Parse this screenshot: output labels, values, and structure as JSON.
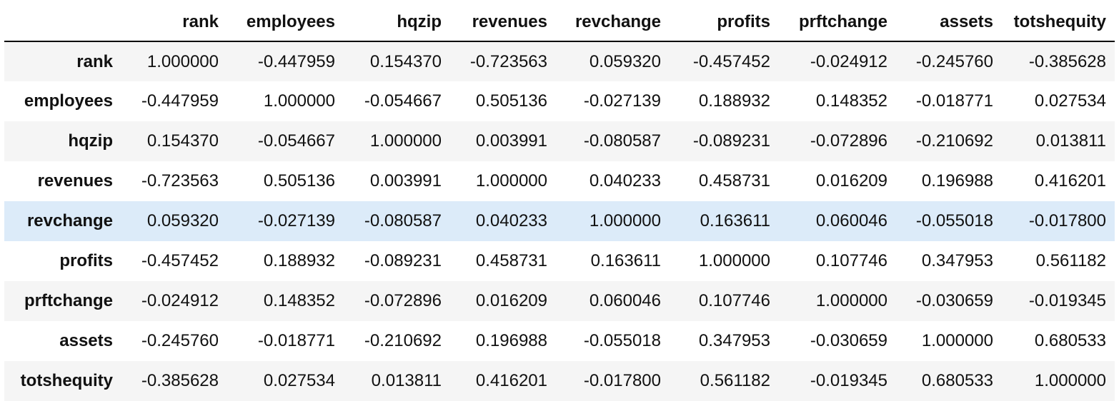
{
  "table": {
    "index_header": "",
    "columns": [
      "rank",
      "employees",
      "hqzip",
      "revenues",
      "revchange",
      "profits",
      "prftchange",
      "assets",
      "totshequity"
    ],
    "hovered_row_index": 4,
    "rows": [
      {
        "label": "rank",
        "values": [
          "1.000000",
          "-0.447959",
          "0.154370",
          "-0.723563",
          "0.059320",
          "-0.457452",
          "-0.024912",
          "-0.245760",
          "-0.385628"
        ]
      },
      {
        "label": "employees",
        "values": [
          "-0.447959",
          "1.000000",
          "-0.054667",
          "0.505136",
          "-0.027139",
          "0.188932",
          "0.148352",
          "-0.018771",
          "0.027534"
        ]
      },
      {
        "label": "hqzip",
        "values": [
          "0.154370",
          "-0.054667",
          "1.000000",
          "0.003991",
          "-0.080587",
          "-0.089231",
          "-0.072896",
          "-0.210692",
          "0.013811"
        ]
      },
      {
        "label": "revenues",
        "values": [
          "-0.723563",
          "0.505136",
          "0.003991",
          "1.000000",
          "0.040233",
          "0.458731",
          "0.016209",
          "0.196988",
          "0.416201"
        ]
      },
      {
        "label": "revchange",
        "values": [
          "0.059320",
          "-0.027139",
          "-0.080587",
          "0.040233",
          "1.000000",
          "0.163611",
          "0.060046",
          "-0.055018",
          "-0.017800"
        ]
      },
      {
        "label": "profits",
        "values": [
          "-0.457452",
          "0.188932",
          "-0.089231",
          "0.458731",
          "0.163611",
          "1.000000",
          "0.107746",
          "0.347953",
          "0.561182"
        ]
      },
      {
        "label": "prftchange",
        "values": [
          "-0.024912",
          "0.148352",
          "-0.072896",
          "0.016209",
          "0.060046",
          "0.107746",
          "1.000000",
          "-0.030659",
          "-0.019345"
        ]
      },
      {
        "label": "assets",
        "values": [
          "-0.245760",
          "-0.018771",
          "-0.210692",
          "0.196988",
          "-0.055018",
          "0.347953",
          "-0.030659",
          "1.000000",
          "0.680533"
        ]
      },
      {
        "label": "totshequity",
        "values": [
          "-0.385628",
          "0.027534",
          "0.013811",
          "0.416201",
          "-0.017800",
          "0.561182",
          "-0.019345",
          "0.680533",
          "1.000000"
        ]
      }
    ]
  },
  "colors": {
    "row_odd": "#f5f5f5",
    "row_even": "#ffffff",
    "row_hover": "#dcebf9",
    "header_rule": "#000000",
    "text": "#111111"
  }
}
